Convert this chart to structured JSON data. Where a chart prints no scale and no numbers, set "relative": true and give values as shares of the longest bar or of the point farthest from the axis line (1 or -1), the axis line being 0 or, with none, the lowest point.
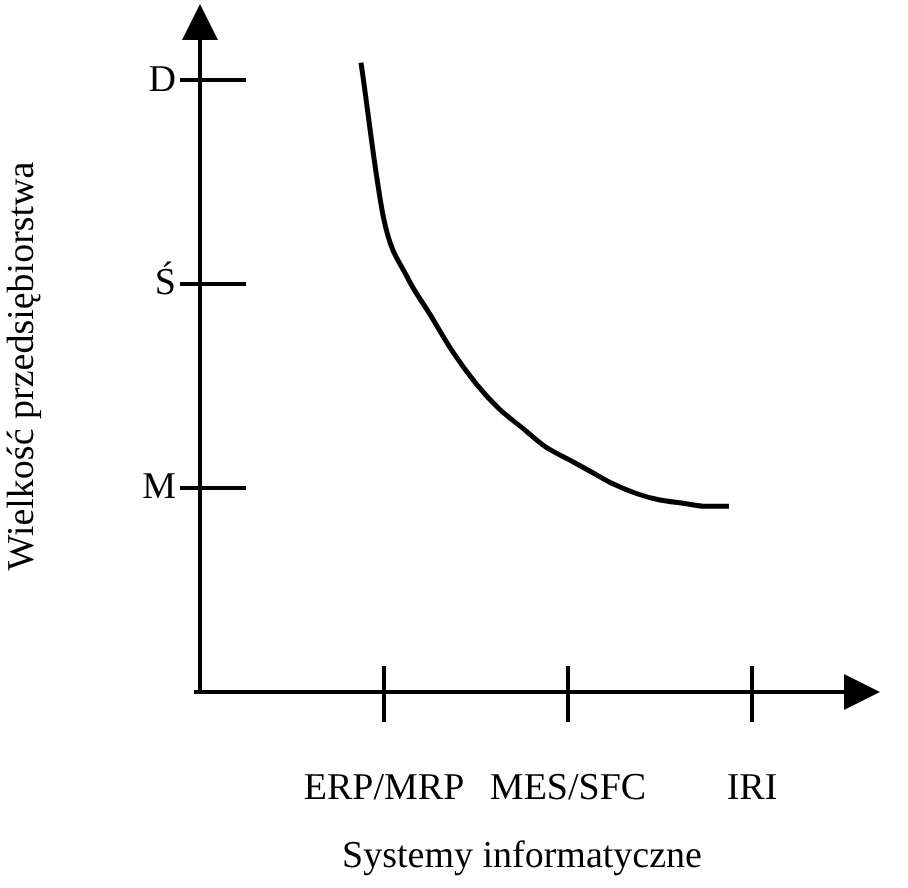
{
  "chart_data": {
    "type": "line",
    "relative": true,
    "xlabel": "Systemy informatyczne",
    "ylabel": "Wielkość przedsiębiorstwa",
    "color": "#000000",
    "marker": "none",
    "categories": [
      null,
      null,
      null,
      null,
      null,
      null,
      null,
      null,
      "ERP/MRP",
      null,
      null,
      null,
      null,
      null,
      null,
      null,
      "MES/SFC",
      null,
      null,
      null,
      null,
      null,
      null,
      null,
      "IRI",
      null,
      null,
      null,
      null
    ],
    "values": [
      null,
      null,
      null,
      null,
      null,
      null,
      null,
      1,
      0.75,
      0.66,
      0.6,
      0.54,
      0.49,
      0.45,
      0.42,
      0.39,
      0.37,
      0.35,
      0.33,
      0.315,
      0.305,
      0.3,
      0.295,
      0.295,
      null,
      null,
      null,
      null,
      null
    ],
    "annotations": [
      "D",
      "Ś",
      "M"
    ]
  }
}
